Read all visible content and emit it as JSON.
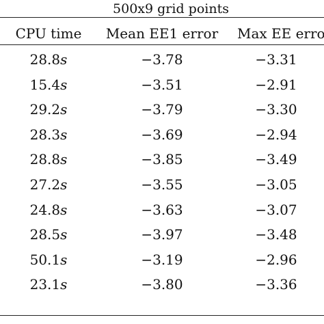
{
  "table": {
    "group_title": "500x9 grid points",
    "columns": [
      "CPU time",
      "Mean EE1 error",
      "Max EE erro"
    ],
    "rows": [
      {
        "cpu": "28.8",
        "unit": "s",
        "mean": "−3.78",
        "max": "−3.31"
      },
      {
        "cpu": "15.4",
        "unit": "s",
        "mean": "−3.51",
        "max": "−2.91"
      },
      {
        "cpu": "29.2",
        "unit": "s",
        "mean": "−3.79",
        "max": "−3.30"
      },
      {
        "cpu": "28.3",
        "unit": "s",
        "mean": "−3.69",
        "max": "−2.94"
      },
      {
        "cpu": "28.8",
        "unit": "s",
        "mean": "−3.85",
        "max": "−3.49"
      },
      {
        "cpu": "27.2",
        "unit": "s",
        "mean": "−3.55",
        "max": "−3.05"
      },
      {
        "cpu": "24.8",
        "unit": "s",
        "mean": "−3.63",
        "max": "−3.07"
      },
      {
        "cpu": "28.5",
        "unit": "s",
        "mean": "−3.97",
        "max": "−3.48"
      },
      {
        "cpu": "50.1",
        "unit": "s",
        "mean": "−3.19",
        "max": "−2.96"
      },
      {
        "cpu": "23.1",
        "unit": "s",
        "mean": "−3.80",
        "max": "−3.36"
      }
    ]
  }
}
